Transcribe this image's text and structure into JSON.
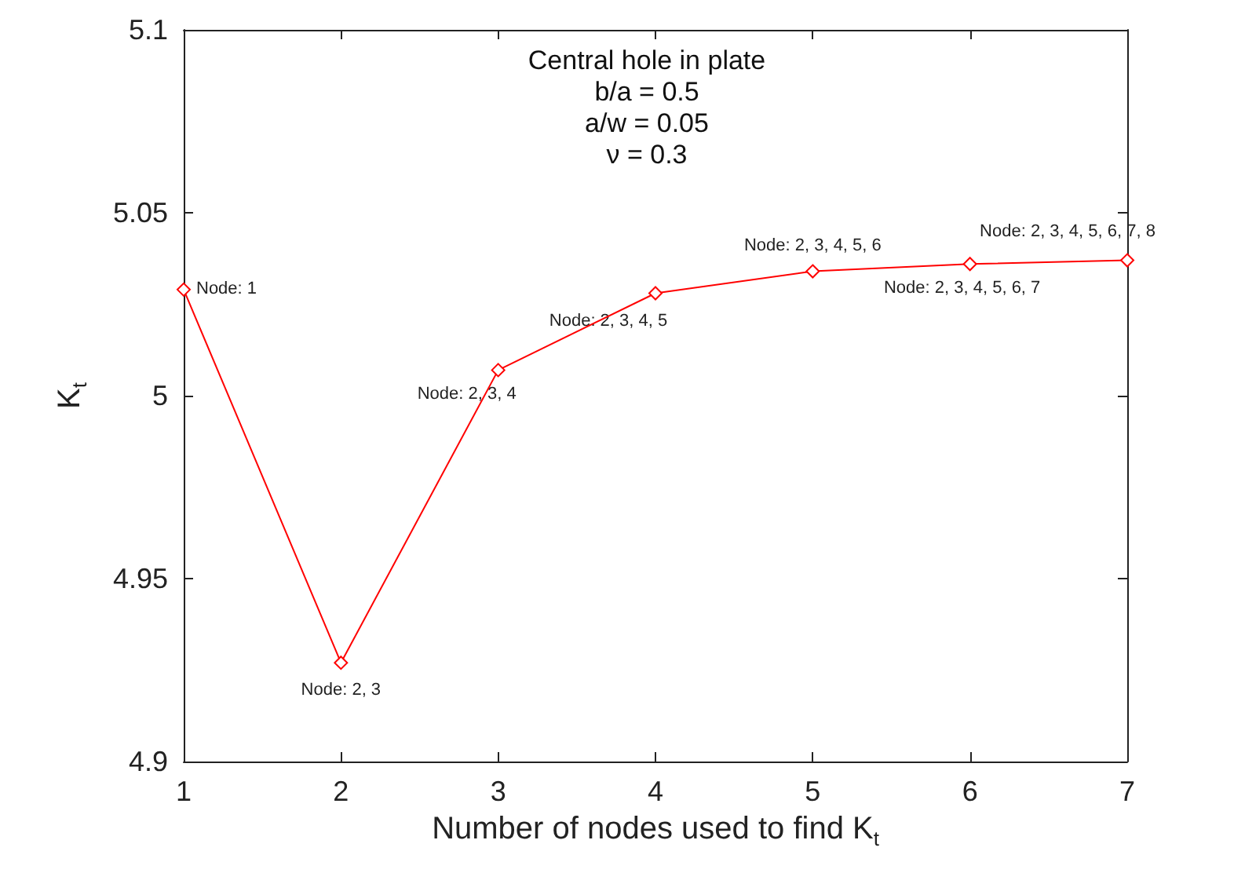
{
  "chart_data": {
    "type": "line",
    "xlabel": "Number of nodes used to find K$_{t}$",
    "ylabel": "K$_{t}$",
    "x": [
      1,
      2,
      3,
      4,
      5,
      6,
      7
    ],
    "series": [
      {
        "color": "#ff0000",
        "values": [
          5.029,
          4.927,
          5.007,
          5.028,
          5.034,
          5.036,
          5.037
        ]
      }
    ],
    "xlim": [
      1,
      7
    ],
    "xticks": [
      1,
      2,
      3,
      4,
      5,
      6,
      7
    ],
    "ylim": [
      4.9,
      5.1
    ],
    "yticks": [
      4.9,
      4.95,
      5,
      5.05,
      5.1
    ],
    "grid": false,
    "marker": "diamond",
    "line_style": "solid",
    "annotations": [
      "Central hole in plate",
      "b/a = 0.5",
      "a/w = 0.05",
      "ν = 0.3",
      {
        "text": "Node: 1",
        "x": 1,
        "y": 5.029
      },
      {
        "text": "Node: 2, 3",
        "x": 2,
        "y": 4.927
      },
      {
        "text": "Node: 2, 3, 4",
        "x": 3,
        "y": 5.007
      },
      {
        "text": "Node: 2, 3, 4, 5",
        "x": 4,
        "y": 5.028
      },
      {
        "text": "Node: 2, 3, 4, 5, 6",
        "x": 5,
        "y": 5.034
      },
      {
        "text": "Node: 2, 3, 4, 5, 6, 7",
        "x": 6,
        "y": 5.036
      },
      {
        "text": "Node: 2, 3, 4, 5, 6, 7, 8",
        "x": 7,
        "y": 5.037
      }
    ]
  }
}
